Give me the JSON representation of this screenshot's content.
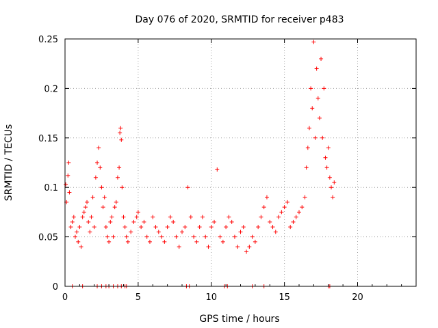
{
  "chart_data": {
    "type": "scatter",
    "title": "Day 076 of 2020, SRMTID for receiver p483",
    "xlabel": "GPS time / hours",
    "ylabel": "SRMTID / TECUs",
    "xlim": [
      0,
      24
    ],
    "ylim": [
      0,
      0.25
    ],
    "xticks": [
      0,
      5,
      10,
      15,
      20
    ],
    "yticks": [
      0,
      0.05,
      0.1,
      0.15,
      0.2,
      0.25
    ],
    "xtick_labels": [
      "0",
      "5",
      "10",
      "15",
      "20"
    ],
    "ytick_labels": [
      "0",
      "0.05",
      "0.1",
      "0.15",
      "0.2",
      "0.25"
    ],
    "grid": true,
    "marker": "+",
    "color": "#ff0000",
    "series": [
      {
        "name": "SRMTID",
        "points": [
          [
            0.05,
            0.103
          ],
          [
            0.1,
            0.085
          ],
          [
            0.2,
            0.112
          ],
          [
            0.25,
            0.125
          ],
          [
            0.3,
            0.095
          ],
          [
            0.4,
            0.06
          ],
          [
            0.5,
            0.065
          ],
          [
            0.6,
            0.07
          ],
          [
            0.7,
            0.05
          ],
          [
            0.8,
            0.055
          ],
          [
            0.9,
            0.045
          ],
          [
            1.0,
            0.06
          ],
          [
            1.1,
            0.04
          ],
          [
            1.2,
            0.07
          ],
          [
            1.3,
            0.075
          ],
          [
            1.4,
            0.08
          ],
          [
            1.5,
            0.085
          ],
          [
            1.6,
            0.065
          ],
          [
            1.7,
            0.055
          ],
          [
            1.8,
            0.07
          ],
          [
            1.9,
            0.09
          ],
          [
            2.0,
            0.06
          ],
          [
            2.1,
            0.11
          ],
          [
            2.2,
            0.125
          ],
          [
            2.3,
            0.14
          ],
          [
            2.4,
            0.12
          ],
          [
            2.5,
            0.1
          ],
          [
            2.6,
            0.08
          ],
          [
            2.7,
            0.09
          ],
          [
            2.8,
            0.06
          ],
          [
            2.9,
            0.05
          ],
          [
            3.0,
            0.045
          ],
          [
            3.1,
            0.065
          ],
          [
            3.2,
            0.07
          ],
          [
            3.3,
            0.05
          ],
          [
            3.4,
            0.08
          ],
          [
            3.5,
            0.085
          ],
          [
            3.6,
            0.11
          ],
          [
            3.7,
            0.12
          ],
          [
            3.75,
            0.155
          ],
          [
            3.8,
            0.16
          ],
          [
            3.85,
            0.148
          ],
          [
            3.9,
            0.1
          ],
          [
            4.0,
            0.07
          ],
          [
            4.1,
            0.06
          ],
          [
            4.2,
            0.05
          ],
          [
            4.3,
            0.045
          ],
          [
            4.5,
            0.055
          ],
          [
            4.7,
            0.065
          ],
          [
            4.9,
            0.07
          ],
          [
            5.0,
            0.075
          ],
          [
            5.2,
            0.06
          ],
          [
            5.4,
            0.065
          ],
          [
            5.6,
            0.05
          ],
          [
            5.8,
            0.045
          ],
          [
            6.0,
            0.07
          ],
          [
            6.2,
            0.06
          ],
          [
            6.4,
            0.055
          ],
          [
            6.6,
            0.05
          ],
          [
            6.8,
            0.045
          ],
          [
            7.0,
            0.06
          ],
          [
            7.2,
            0.07
          ],
          [
            7.4,
            0.065
          ],
          [
            7.6,
            0.05
          ],
          [
            7.8,
            0.04
          ],
          [
            8.0,
            0.055
          ],
          [
            8.2,
            0.06
          ],
          [
            8.4,
            0.1
          ],
          [
            8.6,
            0.07
          ],
          [
            8.8,
            0.05
          ],
          [
            9.0,
            0.045
          ],
          [
            9.2,
            0.06
          ],
          [
            9.4,
            0.07
          ],
          [
            9.6,
            0.05
          ],
          [
            9.8,
            0.04
          ],
          [
            10.0,
            0.06
          ],
          [
            10.2,
            0.065
          ],
          [
            10.4,
            0.118
          ],
          [
            10.6,
            0.05
          ],
          [
            10.8,
            0.045
          ],
          [
            11.0,
            0.06
          ],
          [
            11.2,
            0.07
          ],
          [
            11.4,
            0.065
          ],
          [
            11.6,
            0.05
          ],
          [
            11.8,
            0.04
          ],
          [
            12.0,
            0.055
          ],
          [
            12.2,
            0.06
          ],
          [
            12.4,
            0.035
          ],
          [
            12.6,
            0.04
          ],
          [
            12.8,
            0.05
          ],
          [
            13.0,
            0.045
          ],
          [
            13.2,
            0.06
          ],
          [
            13.4,
            0.07
          ],
          [
            13.6,
            0.08
          ],
          [
            13.8,
            0.09
          ],
          [
            14.0,
            0.065
          ],
          [
            14.2,
            0.06
          ],
          [
            14.4,
            0.055
          ],
          [
            14.6,
            0.07
          ],
          [
            14.8,
            0.075
          ],
          [
            15.0,
            0.08
          ],
          [
            15.2,
            0.085
          ],
          [
            15.4,
            0.06
          ],
          [
            15.6,
            0.065
          ],
          [
            15.8,
            0.07
          ],
          [
            16.0,
            0.075
          ],
          [
            16.2,
            0.08
          ],
          [
            16.4,
            0.09
          ],
          [
            16.5,
            0.12
          ],
          [
            16.6,
            0.14
          ],
          [
            16.7,
            0.16
          ],
          [
            16.8,
            0.2
          ],
          [
            16.9,
            0.18
          ],
          [
            17.0,
            0.247
          ],
          [
            17.1,
            0.15
          ],
          [
            17.2,
            0.22
          ],
          [
            17.3,
            0.19
          ],
          [
            17.4,
            0.17
          ],
          [
            17.5,
            0.23
          ],
          [
            17.6,
            0.15
          ],
          [
            17.7,
            0.2
          ],
          [
            17.8,
            0.13
          ],
          [
            17.9,
            0.12
          ],
          [
            18.0,
            0.14
          ],
          [
            18.1,
            0.11
          ],
          [
            18.2,
            0.1
          ],
          [
            18.3,
            0.09
          ],
          [
            18.4,
            0.105
          ]
        ]
      }
    ],
    "zero_markers_x": [
      0.5,
      1.2,
      2.2,
      2.5,
      2.8,
      3.0,
      3.3,
      3.6,
      3.85,
      4.1,
      4.2,
      8.3,
      8.5,
      10.9,
      11.1,
      12.8,
      13.6,
      18.0,
      18.1
    ]
  }
}
